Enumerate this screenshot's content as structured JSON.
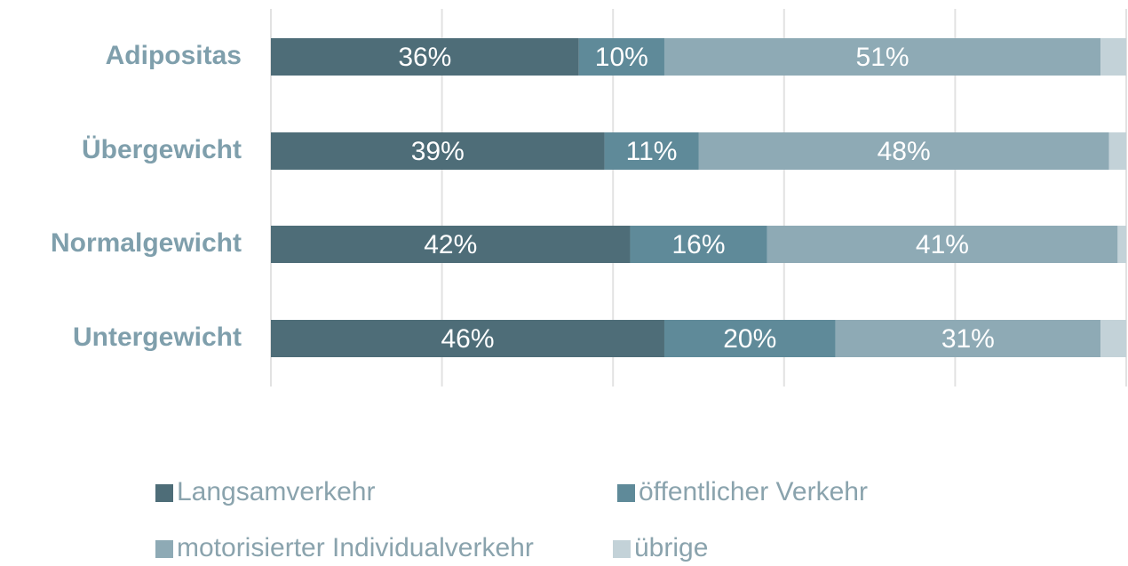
{
  "chart_data": {
    "type": "stacked_bar_horizontal",
    "categories": [
      "Adipositas",
      "Übergewicht",
      "Normalgewicht",
      "Untergewicht"
    ],
    "series": [
      {
        "name": "Langsamverkehr",
        "color": "#4e6d78",
        "values": [
          36,
          39,
          42,
          46
        ],
        "value_labels": [
          "36%",
          "39%",
          "42%",
          "46%"
        ]
      },
      {
        "name": "öffentlicher Verkehr",
        "color": "#5f8a99",
        "values": [
          10,
          11,
          16,
          20
        ],
        "value_labels": [
          "10%",
          "11%",
          "16%",
          "20%"
        ]
      },
      {
        "name": "motorisierter Individualverkehr",
        "color": "#8eaab5",
        "values": [
          51,
          48,
          41,
          31
        ],
        "value_labels": [
          "51%",
          "48%",
          "41%",
          "31%"
        ]
      },
      {
        "name": "übrige",
        "color": "#c3d2d8",
        "values": [
          3,
          2,
          1,
          3
        ]
      }
    ],
    "xlim": [
      0,
      100
    ],
    "xticks": [
      0,
      20,
      40,
      60,
      80,
      100
    ],
    "grid": true,
    "legend": "bottom"
  }
}
